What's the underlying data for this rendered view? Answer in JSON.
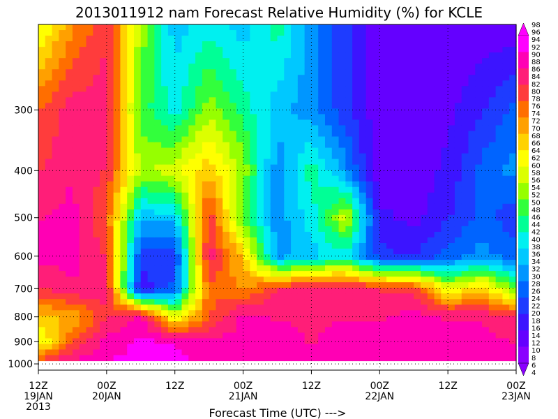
{
  "chart_data": {
    "type": "heatmap",
    "title": "2013011912 nam Forecast Relative Humidity (%) for KCLE",
    "xlabel": "Forecast Time (UTC) --->",
    "ylabel": "",
    "x_ticks": [
      {
        "hour": 0,
        "line1": "12Z",
        "line2": "19JAN",
        "line3": "2013"
      },
      {
        "hour": 12,
        "line1": "00Z",
        "line2": "20JAN",
        "line3": ""
      },
      {
        "hour": 24,
        "line1": "12Z",
        "line2": "",
        "line3": ""
      },
      {
        "hour": 36,
        "line1": "00Z",
        "line2": "21JAN",
        "line3": ""
      },
      {
        "hour": 48,
        "line1": "12Z",
        "line2": "",
        "line3": ""
      },
      {
        "hour": 60,
        "line1": "00Z",
        "line2": "22JAN",
        "line3": ""
      },
      {
        "hour": 72,
        "line1": "12Z",
        "line2": "",
        "line3": ""
      },
      {
        "hour": 84,
        "line1": "00Z",
        "line2": "23JAN",
        "line3": ""
      }
    ],
    "x_range_hours": [
      0,
      84
    ],
    "y_axis": "pressure (hPa), log scale",
    "y_range": [
      1030,
      200
    ],
    "y_ticks": [
      300,
      400,
      500,
      600,
      700,
      800,
      900,
      1000
    ],
    "grid": true,
    "colorbar": {
      "levels": [
        4,
        6,
        8,
        10,
        12,
        14,
        16,
        18,
        20,
        22,
        24,
        26,
        28,
        30,
        32,
        34,
        36,
        38,
        40,
        42,
        44,
        46,
        48,
        50,
        52,
        54,
        56,
        58,
        60,
        62,
        64,
        66,
        68,
        70,
        72,
        74,
        76,
        78,
        80,
        82,
        84,
        86,
        88,
        90,
        92,
        94,
        96,
        98
      ],
      "labels": [
        "98",
        "96",
        "94",
        "92",
        "90",
        "88",
        "86",
        "84",
        "82",
        "80",
        "78",
        "76",
        "74",
        "72",
        "70",
        "68",
        "66",
        "64",
        "62",
        "60",
        "58",
        "56",
        "54",
        "52",
        "50",
        "48",
        "46",
        "44",
        "42",
        "40",
        "38",
        "36",
        "34",
        "32",
        "30",
        "28",
        "26",
        "24",
        "22",
        "20",
        "18",
        "16",
        "14",
        "12",
        "10",
        "8",
        "6",
        "4"
      ]
    },
    "grid_hours": [
      0,
      6,
      12,
      18,
      24,
      30,
      36,
      42,
      48,
      54,
      60,
      66,
      72,
      78,
      84
    ],
    "grid_levels": [
      200,
      300,
      400,
      500,
      600,
      700,
      800,
      900,
      1000
    ],
    "rh": [
      [
        60,
        75,
        85,
        55,
        35,
        40,
        35,
        45,
        30,
        20,
        10,
        10,
        10,
        10,
        10
      ],
      [
        80,
        88,
        88,
        50,
        40,
        55,
        45,
        35,
        30,
        20,
        10,
        10,
        12,
        18,
        25
      ],
      [
        85,
        90,
        85,
        55,
        60,
        70,
        55,
        30,
        45,
        30,
        10,
        10,
        15,
        25,
        30
      ],
      [
        90,
        92,
        80,
        35,
        35,
        85,
        50,
        30,
        40,
        60,
        15,
        12,
        18,
        25,
        20
      ],
      [
        92,
        92,
        85,
        20,
        20,
        88,
        70,
        30,
        35,
        40,
        20,
        18,
        25,
        30,
        25
      ],
      [
        85,
        90,
        88,
        15,
        25,
        80,
        75,
        85,
        90,
        90,
        85,
        85,
        60,
        70,
        50
      ],
      [
        70,
        72,
        85,
        92,
        60,
        80,
        92,
        90,
        90,
        90,
        90,
        92,
        90,
        90,
        85
      ],
      [
        60,
        80,
        92,
        96,
        95,
        92,
        92,
        92,
        90,
        92,
        92,
        92,
        92,
        92,
        90
      ],
      [
        85,
        92,
        96,
        97,
        96,
        95,
        95,
        95,
        94,
        95,
        95,
        95,
        95,
        95,
        94
      ]
    ]
  }
}
